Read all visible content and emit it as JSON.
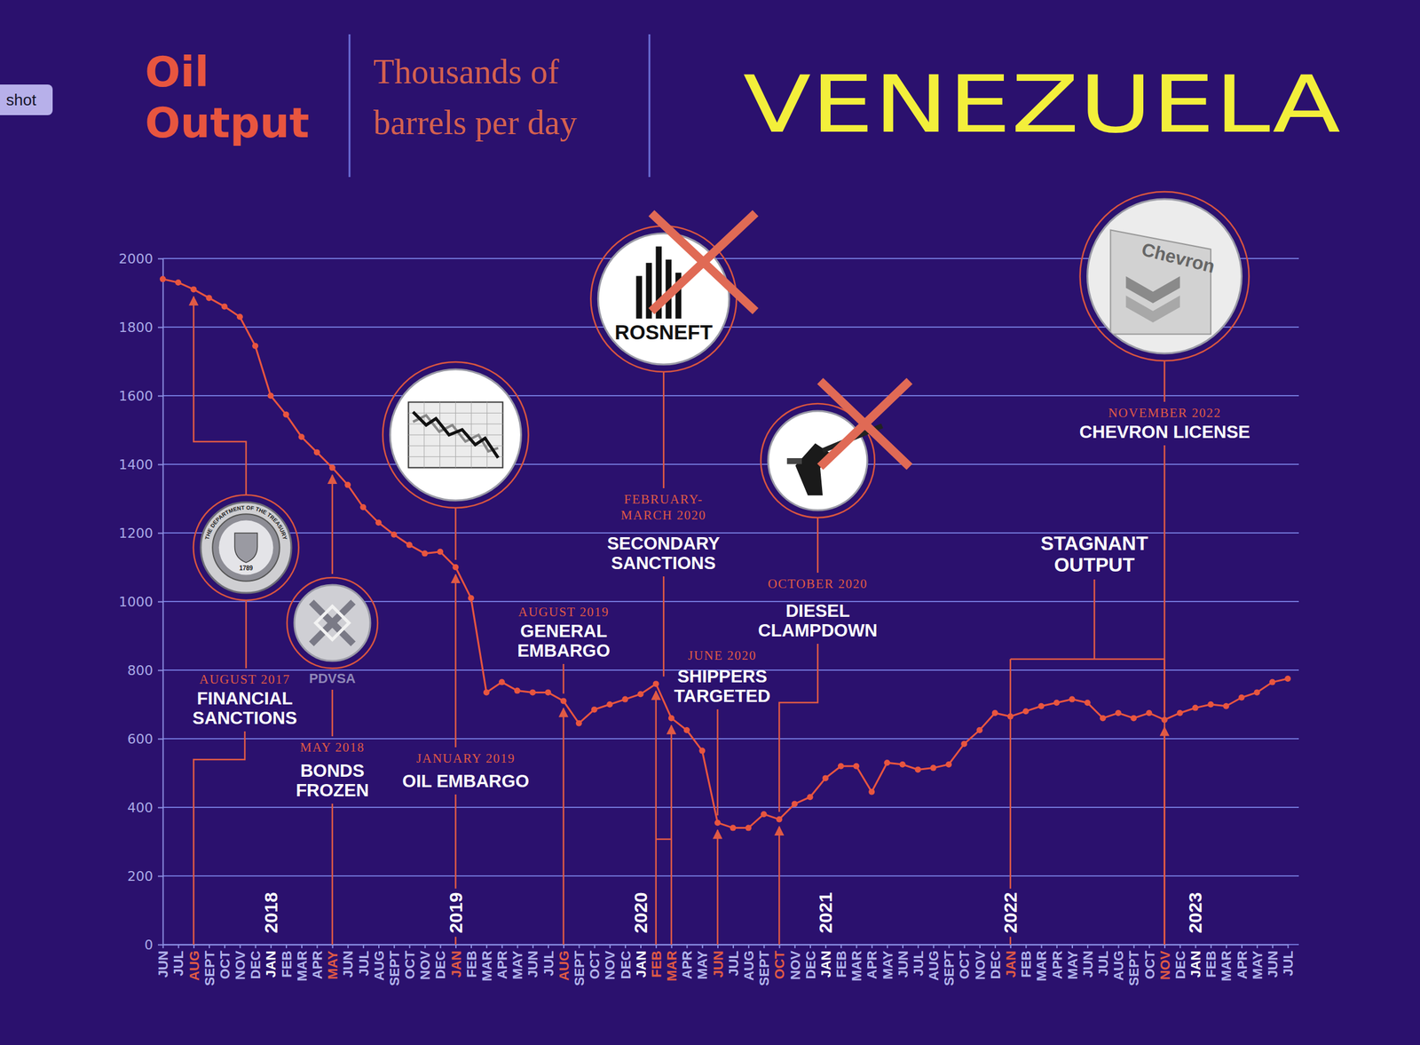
{
  "overlay_text": "shot",
  "chart_data": {
    "type": "line",
    "title": [
      "Oil",
      "Output"
    ],
    "subtitle": [
      "Thousands of",
      "barrels per day"
    ],
    "heading": "VENEZUELA",
    "categories": [
      "JUN",
      "JUL",
      "AUG",
      "SEPT",
      "OCT",
      "NOV",
      "DEC",
      "JAN",
      "FEB",
      "MAR",
      "APR",
      "MAY",
      "JUN",
      "JUL",
      "AUG",
      "SEPT",
      "OCT",
      "NOV",
      "DEC",
      "JAN",
      "FEB",
      "MAR",
      "APR",
      "MAY",
      "JUN",
      "JUL",
      "AUG",
      "SEPT",
      "OCT",
      "NOV",
      "DEC",
      "JAN",
      "FEB",
      "MAR",
      "APR",
      "MAY",
      "JUN",
      "JUL",
      "AUG",
      "SEPT",
      "OCT",
      "NOV",
      "DEC",
      "JAN",
      "FEB",
      "MAR",
      "APR",
      "MAY",
      "JUN",
      "JUL",
      "AUG",
      "SEPT",
      "OCT",
      "NOV",
      "DEC",
      "JAN",
      "FEB",
      "MAR",
      "APR",
      "MAY",
      "JUN",
      "JUL",
      "AUG",
      "SEPT",
      "OCT",
      "NOV",
      "DEC",
      "JAN",
      "FEB",
      "MAR",
      "APR",
      "MAY",
      "JUN",
      "JUL"
    ],
    "values": [
      1940,
      1930,
      1910,
      1885,
      1860,
      1830,
      1745,
      1600,
      1545,
      1480,
      1435,
      1390,
      1340,
      1275,
      1230,
      1195,
      1165,
      1140,
      1145,
      1100,
      1010,
      735,
      765,
      740,
      735,
      735,
      710,
      645,
      685,
      700,
      715,
      730,
      760,
      660,
      625,
      565,
      355,
      340,
      340,
      380,
      365,
      410,
      430,
      485,
      520,
      520,
      445,
      530,
      525,
      510,
      515,
      525,
      585,
      625,
      675,
      665,
      680,
      695,
      705,
      715,
      705,
      660,
      675,
      660,
      675,
      655,
      675,
      690,
      700,
      695,
      720,
      735,
      765,
      775
    ],
    "year_labels": [
      {
        "label": "2018",
        "at": 7
      },
      {
        "label": "2019",
        "at": 19
      },
      {
        "label": "2020",
        "at": 31
      },
      {
        "label": "2021",
        "at": 43
      },
      {
        "label": "2022",
        "at": 55
      },
      {
        "label": "2023",
        "at": 67
      }
    ],
    "color": "#e8553f",
    "marker": "circle",
    "ylim": [
      0,
      2000
    ],
    "yticks": [
      0,
      200,
      400,
      600,
      800,
      1000,
      1200,
      1400,
      1600,
      1800,
      2000
    ],
    "grid": true,
    "annotations": [
      {
        "date": [
          "AUGUST 2017"
        ],
        "text": [
          "FINANCIAL",
          "SANCTIONS"
        ],
        "at": [
          2
        ],
        "icon_text": [
          "THE DEPARTMENT OF THE TREASURY",
          "1789"
        ]
      },
      {
        "date": [
          "MAY 2018"
        ],
        "text": [
          "BONDS",
          "FROZEN"
        ],
        "at": [
          11
        ],
        "icon_text": [
          "PDVSA"
        ]
      },
      {
        "date": [
          "JANUARY 2019"
        ],
        "text": [
          "OIL EMBARGO"
        ],
        "at": [
          19
        ]
      },
      {
        "date": [
          "AUGUST 2019"
        ],
        "text": [
          "GENERAL",
          "EMBARGO"
        ],
        "at": [
          26
        ]
      },
      {
        "date": [
          "FEBRUARY-",
          "MARCH 2020"
        ],
        "text": [
          "SECONDARY",
          "SANCTIONS"
        ],
        "at": [
          32,
          33
        ],
        "icon_text": [
          "ROSNEFT"
        ]
      },
      {
        "date": [
          "JUNE 2020"
        ],
        "text": [
          "SHIPPERS",
          "TARGETED"
        ],
        "at": [
          36
        ]
      },
      {
        "date": [
          "OCTOBER 2020"
        ],
        "text": [
          "DIESEL",
          "CLAMPDOWN"
        ],
        "at": [
          40
        ]
      },
      {
        "text": [
          "STAGNANT",
          "OUTPUT"
        ],
        "at": [
          55,
          65
        ]
      },
      {
        "date": [
          "NOVEMBER 2022"
        ],
        "text": [
          "CHEVRON LICENSE"
        ],
        "at": [
          65
        ],
        "icon_text": [
          "Chevron"
        ]
      }
    ]
  }
}
